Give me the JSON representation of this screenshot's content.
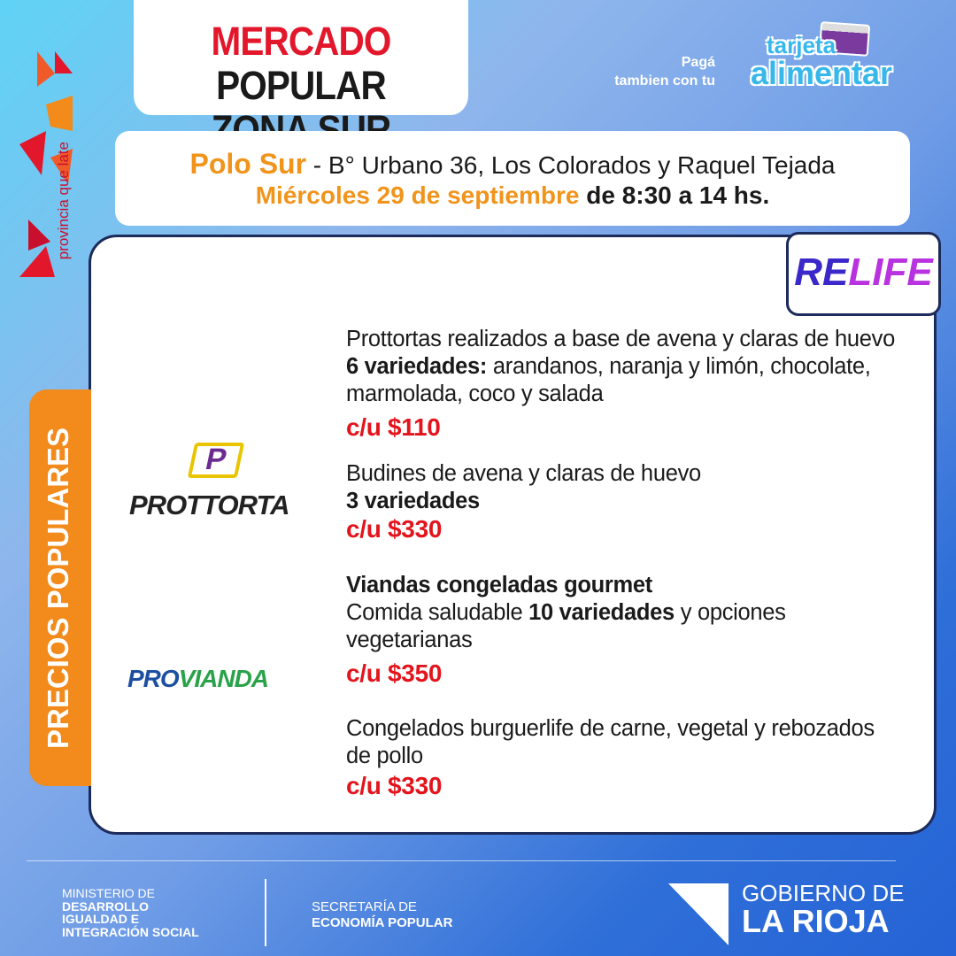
{
  "header": {
    "title_line1_red": "MERCADO",
    "title_line1_black": "POPULAR",
    "title_line2": "ZONA SUR"
  },
  "payment": {
    "line1": "Pagá",
    "line2": "tambien con tu",
    "brand_line1": "tarjeta",
    "brand_line2": "alimentar"
  },
  "event": {
    "place": "Polo Sur",
    "address": " - B° Urbano 36, Los Colorados y Raquel Tejada",
    "date": "Miércoles 29 de septiembre",
    "time": " de 8:30 a 14 hs."
  },
  "brand": {
    "tagline": "provincia que late"
  },
  "tab_label": "PRECIOS POPULARES",
  "relife": {
    "re": "RE",
    "life": "LIFE"
  },
  "logos": {
    "prottorta_a": "PROT",
    "prottorta_b": "TORTA",
    "provianda_a": "PRO",
    "provianda_b": "VIANDA"
  },
  "products": [
    {
      "t1": "Prottortas realizados a base de avena y claras de huevo ",
      "b1": "6 variedades:",
      "t2": " arandanos, naranja y limón, chocolate, marmolada, coco y salada",
      "price": "c/u $110"
    },
    {
      "t1": "Budines de avena y claras de huevo",
      "b1": "3 variedades",
      "price": "c/u $330"
    },
    {
      "b0": "Viandas congeladas gourmet",
      "t1": "Comida saludable ",
      "b1": "10 variedades",
      "t2": " y opciones vegetarianas",
      "price": "c/u $350"
    },
    {
      "t1": "Congelados burguerlife de carne, vegetal y rebozados de pollo",
      "price": "c/u $330"
    }
  ],
  "footer": {
    "ministry_l1": "MINISTERIO DE",
    "ministry_l2": "DESARROLLO",
    "ministry_l3": "IGUALDAD E",
    "ministry_l4": "INTEGRACIÓN SOCIAL",
    "sec_l1": "SECRETARÍA DE",
    "sec_l2": "ECONOMÍA POPULAR",
    "gob_l1": "GOBIERNO DE",
    "gob_l2": "LA RIOJA"
  },
  "colors": {
    "accent_orange": "#f28a1c",
    "price_red": "#e3141c",
    "navy": "#1c2b5a"
  }
}
